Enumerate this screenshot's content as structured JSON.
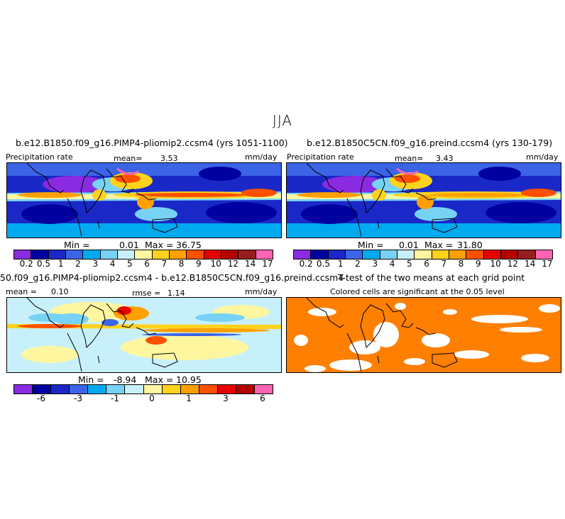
{
  "season": "JJA",
  "panels": {
    "p1": {
      "title": "b.e12.B1850.f09_g16.PIMP4-pliomip2.ccsm4 (yrs 1051-1100)",
      "left_label": "Precipitation rate",
      "mean_label": "mean=",
      "mean_value": "3.53",
      "units": "mm/day",
      "min_label": "Min =",
      "min_value": "0.01",
      "max_label": "Max =",
      "max_value": "36.75"
    },
    "p2": {
      "title": "b.e12.B1850C5CN.f09_g16.preind.ccsm4 (yrs 130-179)",
      "left_label": "Precipitation rate",
      "mean_label": "mean=",
      "mean_value": "3.43",
      "units": "mm/day",
      "min_label": "Min =",
      "min_value": "0.01",
      "max_label": "Max =",
      "max_value": "31.80"
    },
    "p3": {
      "title": "50.f09_g16.PIMP4-pliomip2.ccsm4 - b.e12.B1850C5CN.f09_g16.preind.ccsm4",
      "mean_label": "mean =",
      "mean_value": "0.10",
      "rmse_label": "rmse =",
      "rmse_value": "1.14",
      "units": "mm/day",
      "min_label": "Min =",
      "min_value": "-8.94",
      "max_label": "Max =",
      "max_value": "10.95"
    },
    "p4": {
      "title": "T-test of the two means at each grid point",
      "subtitle": "Colored cells are significant at the 0.05 level",
      "color": "#ff7f00"
    }
  },
  "colorbar_precip": {
    "colors": [
      "#8a2be2",
      "#0000a0",
      "#1a28c8",
      "#3c64e6",
      "#00aaf0",
      "#78d2f5",
      "#c8f0fa",
      "#fff6a0",
      "#ffd21e",
      "#ffa000",
      "#ff5000",
      "#e60000",
      "#b40000",
      "#961e1e",
      "#ff64b4"
    ],
    "labels": [
      "0.2",
      "0.5",
      "1",
      "2",
      "3",
      "4",
      "5",
      "6",
      "7",
      "8",
      "9",
      "10",
      "12",
      "14",
      "17"
    ]
  },
  "colorbar_diff": {
    "colors": [
      "#8a2be2",
      "#0000a0",
      "#1a28c8",
      "#3c64e6",
      "#00aaf0",
      "#78d2f5",
      "#c8f0fa",
      "#fff6a0",
      "#ffd21e",
      "#ffa000",
      "#ff5000",
      "#e60000",
      "#b40000",
      "#ff64b4"
    ],
    "labels": [
      "-6",
      "-3",
      "-1",
      "0",
      "1",
      "3",
      "6"
    ]
  }
}
